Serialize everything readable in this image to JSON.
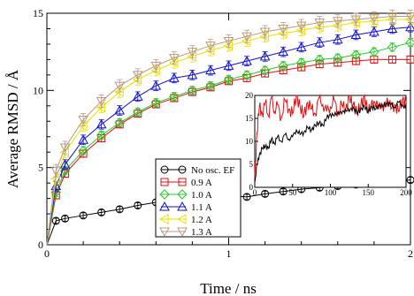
{
  "chart_data": [
    {
      "type": "line",
      "xlabel": "Time / ns",
      "ylabel": "Average RMSD / Å",
      "xlim": [
        0,
        2
      ],
      "ylim": [
        0,
        15
      ],
      "x_ticks": [
        0,
        1,
        2
      ],
      "y_ticks": [
        0,
        5,
        10,
        15
      ],
      "legend_position": "center",
      "series": [
        {
          "name": "No osc. EF",
          "color": "#000000",
          "marker": "circle",
          "x": [
            0,
            0.05,
            0.1,
            0.2,
            0.3,
            0.4,
            0.5,
            0.6,
            0.7,
            0.8,
            0.9,
            1.0,
            1.1,
            1.2,
            1.3,
            1.4,
            1.5,
            1.6,
            1.7,
            1.8,
            1.9,
            2.0
          ],
          "y": [
            0,
            1.55,
            1.7,
            1.9,
            2.1,
            2.3,
            2.55,
            2.75,
            2.9,
            3.05,
            3.15,
            3.2,
            3.1,
            3.3,
            3.45,
            3.6,
            3.7,
            3.8,
            3.9,
            4.0,
            4.1,
            4.2
          ]
        },
        {
          "name": "0.9 A",
          "color": "#e01010",
          "marker": "square",
          "x": [
            0,
            0.05,
            0.1,
            0.2,
            0.3,
            0.4,
            0.5,
            0.6,
            0.7,
            0.8,
            0.9,
            1.0,
            1.1,
            1.2,
            1.3,
            1.4,
            1.5,
            1.6,
            1.7,
            1.8,
            1.9,
            2.0
          ],
          "y": [
            0,
            3.2,
            4.6,
            5.9,
            6.9,
            7.8,
            8.5,
            9.1,
            9.5,
            9.9,
            10.2,
            10.6,
            10.8,
            11.1,
            11.3,
            11.5,
            11.7,
            11.8,
            11.9,
            12.0,
            12.0,
            12.0
          ]
        },
        {
          "name": "1.0 A",
          "color": "#28c828",
          "marker": "diamond",
          "x": [
            0,
            0.05,
            0.1,
            0.2,
            0.3,
            0.4,
            0.5,
            0.6,
            0.7,
            0.8,
            0.9,
            1.0,
            1.1,
            1.2,
            1.3,
            1.4,
            1.5,
            1.6,
            1.7,
            1.8,
            1.9,
            2.0
          ],
          "y": [
            0,
            3.4,
            4.8,
            6.1,
            7.1,
            7.9,
            8.6,
            9.2,
            9.6,
            10.0,
            10.3,
            10.7,
            11.0,
            11.3,
            11.6,
            11.8,
            12.0,
            12.1,
            12.3,
            12.5,
            12.8,
            13.1
          ]
        },
        {
          "name": "1.1 A",
          "color": "#1010c8",
          "marker": "triangle-up",
          "x": [
            0,
            0.05,
            0.1,
            0.2,
            0.3,
            0.4,
            0.5,
            0.6,
            0.7,
            0.8,
            0.9,
            1.0,
            1.1,
            1.2,
            1.3,
            1.4,
            1.5,
            1.6,
            1.7,
            1.8,
            1.9,
            2.0
          ],
          "y": [
            0,
            3.8,
            5.2,
            6.8,
            7.8,
            8.7,
            9.6,
            10.3,
            10.8,
            11.0,
            11.3,
            11.6,
            11.9,
            12.2,
            12.5,
            12.8,
            13.1,
            13.3,
            13.6,
            13.8,
            14.0,
            14.1
          ]
        },
        {
          "name": "1.2 A",
          "color": "#e8e000",
          "marker": "triangle-left",
          "x": [
            0,
            0.05,
            0.1,
            0.2,
            0.3,
            0.4,
            0.5,
            0.6,
            0.7,
            0.8,
            0.9,
            1.0,
            1.1,
            1.2,
            1.3,
            1.4,
            1.5,
            1.6,
            1.7,
            1.8,
            1.9,
            2.0
          ],
          "y": [
            0,
            4.3,
            6.0,
            7.7,
            8.9,
            9.9,
            10.7,
            11.3,
            11.8,
            12.2,
            12.6,
            12.9,
            13.2,
            13.5,
            13.7,
            13.9,
            14.1,
            14.2,
            14.4,
            14.5,
            14.6,
            14.6
          ]
        },
        {
          "name": "1.3 A",
          "color": "#b89888",
          "marker": "triangle-down",
          "x": [
            0,
            0.05,
            0.1,
            0.2,
            0.3,
            0.4,
            0.5,
            0.6,
            0.7,
            0.8,
            0.9,
            1.0,
            1.1,
            1.2,
            1.3,
            1.4,
            1.5,
            1.6,
            1.7,
            1.8,
            1.9,
            2.0
          ],
          "y": [
            0,
            4.8,
            6.3,
            8.1,
            9.3,
            10.3,
            11.0,
            11.6,
            12.1,
            12.5,
            12.9,
            13.2,
            13.5,
            13.8,
            14.0,
            14.2,
            14.4,
            14.5,
            14.6,
            14.7,
            14.8,
            14.8
          ]
        }
      ]
    },
    {
      "type": "line",
      "inset": true,
      "xlim": [
        0,
        200
      ],
      "ylim": [
        0,
        20
      ],
      "x_ticks": [
        0,
        50,
        100,
        150,
        200
      ],
      "y_ticks": [
        0,
        5,
        10,
        15,
        20
      ],
      "series": [
        {
          "color": "#e01010",
          "x": [
            0,
            3,
            6,
            10,
            14,
            18,
            22,
            26,
            30,
            35,
            40,
            45,
            50,
            55,
            60,
            65,
            70,
            75,
            80,
            85,
            90,
            95,
            100,
            105,
            110,
            115,
            120,
            125,
            130,
            135,
            140,
            145,
            150,
            155,
            160,
            165,
            170,
            175,
            180,
            185,
            190,
            195,
            200
          ],
          "y": [
            2,
            12,
            17.5,
            16,
            18.5,
            15.5,
            19.5,
            16.5,
            18,
            15,
            19,
            17,
            16,
            20,
            17.5,
            15.5,
            18.5,
            17,
            16,
            19.5,
            18,
            16.5,
            17.5,
            19,
            16,
            18,
            17,
            19.5,
            18,
            16.5,
            17.5,
            20,
            16,
            19,
            17.5,
            18.5,
            16.5,
            19.5,
            17,
            18,
            16.5,
            19,
            18.5
          ]
        },
        {
          "color": "#000000",
          "x": [
            0,
            3,
            6,
            10,
            14,
            18,
            22,
            26,
            30,
            35,
            40,
            45,
            50,
            55,
            60,
            65,
            70,
            75,
            80,
            85,
            90,
            95,
            100,
            105,
            110,
            115,
            120,
            125,
            130,
            135,
            140,
            145,
            150,
            155,
            160,
            165,
            170,
            175,
            180,
            185,
            190,
            195,
            200
          ],
          "y": [
            1,
            5,
            7,
            8.5,
            9,
            8.5,
            10.5,
            9.5,
            11,
            10,
            11.5,
            10.5,
            11,
            12.5,
            11.5,
            12,
            13,
            12.5,
            13.5,
            14,
            13.5,
            15,
            16,
            15.5,
            16.5,
            16,
            17,
            16.5,
            17.5,
            16,
            17,
            17.5,
            16.5,
            17.5,
            17,
            18,
            17.5,
            18.5,
            18,
            17.5,
            18.5,
            18,
            17
          ]
        }
      ]
    }
  ]
}
